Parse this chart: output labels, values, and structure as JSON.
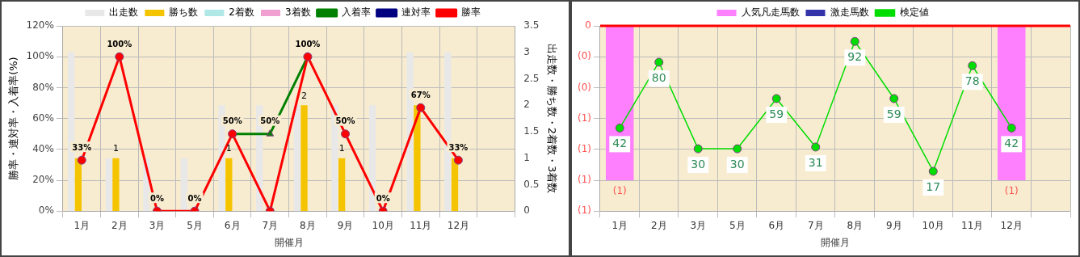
{
  "chart_data": [
    {
      "type": "bar",
      "categories": [
        "1月",
        "2月",
        "3月",
        "5月",
        "6月",
        "7月",
        "8月",
        "9月",
        "10月",
        "11月",
        "12月",
        null
      ],
      "xlabel": "開催月",
      "ylabel": "勝率・連対率・入着率(%)",
      "y2label": "出走数・勝ち数・2着数・3着数",
      "series": [
        {
          "name": "出走数",
          "color": "#e8e8e8",
          "axis": "y2",
          "values": [
            3,
            1,
            1,
            1,
            2,
            2,
            2,
            2,
            2,
            3,
            3,
            null
          ]
        },
        {
          "name": "勝ち数",
          "color": "#f5c400",
          "axis": "y2",
          "values": [
            1,
            1,
            0,
            0,
            1,
            0,
            2,
            1,
            0,
            2,
            1,
            null
          ],
          "value_labels": [
            null,
            "1",
            null,
            null,
            "1",
            null,
            "2",
            "1",
            null,
            null,
            null,
            null
          ]
        },
        {
          "name": "2着数",
          "color": "#b0e8e8",
          "axis": "y2",
          "values": [
            0,
            0,
            0,
            0,
            0,
            0,
            0,
            0,
            0,
            0,
            0,
            null
          ]
        },
        {
          "name": "3着数",
          "color": "#f0a0d0",
          "axis": "y2",
          "values": [
            0,
            0,
            0,
            0,
            0,
            0,
            0,
            0,
            0,
            0,
            0,
            null
          ]
        },
        {
          "name": "入着率",
          "type": "line",
          "color": "#008000",
          "marker": "triangle",
          "values": [
            null,
            null,
            null,
            null,
            50,
            50,
            100,
            null,
            null,
            null,
            null,
            null
          ],
          "value_labels": [
            null,
            null,
            null,
            null,
            "50%",
            "50%",
            "100%",
            null,
            null,
            null,
            null,
            null
          ]
        },
        {
          "name": "連対率",
          "type": "line",
          "color": "#000080",
          "marker": "diamond",
          "values": [
            null,
            null,
            null,
            null,
            null,
            null,
            null,
            null,
            null,
            null,
            null,
            null
          ]
        },
        {
          "name": "勝率",
          "type": "line",
          "color": "#ff0000",
          "marker": "circle",
          "values": [
            33,
            100,
            0,
            0,
            50,
            0,
            100,
            50,
            0,
            67,
            33,
            null
          ],
          "value_labels": [
            "33%",
            "100%",
            "0%",
            "0%",
            null,
            null,
            null,
            "50%",
            "0%",
            "67%",
            "33%",
            null
          ]
        }
      ],
      "ylim": [
        0,
        120
      ],
      "yticks": [
        {
          "value": 0,
          "label": "0%"
        },
        {
          "value": 20,
          "label": "20%"
        },
        {
          "value": 40,
          "label": "40%"
        },
        {
          "value": 60,
          "label": "60%"
        },
        {
          "value": 80,
          "label": "80%"
        },
        {
          "value": 100,
          "label": "100%"
        },
        {
          "value": 120,
          "label": "120%"
        }
      ],
      "y2lim": [
        0,
        3.5
      ],
      "y2ticks": [
        0,
        0.5,
        1,
        1.5,
        2,
        2.5,
        3,
        3.5
      ],
      "grid": true,
      "legend": "top"
    },
    {
      "type": "bar",
      "categories": [
        "1月",
        "2月",
        "3月",
        "5月",
        "6月",
        "7月",
        "8月",
        "9月",
        "10月",
        "11月",
        "12月",
        null
      ],
      "xlabel": "開催月",
      "series": [
        {
          "name": "人気凡走馬数",
          "color": "#ff80ff",
          "values": [
            1,
            null,
            null,
            null,
            null,
            null,
            null,
            null,
            null,
            null,
            1,
            null
          ],
          "value_labels": [
            "(1)",
            null,
            null,
            null,
            null,
            null,
            null,
            null,
            null,
            null,
            "(1)",
            null
          ]
        },
        {
          "name": "激走馬数",
          "color": "#3333aa",
          "values": [
            null,
            null,
            null,
            null,
            null,
            null,
            null,
            null,
            null,
            null,
            null,
            null
          ]
        },
        {
          "name": "検定値",
          "type": "line",
          "color": "#00dd00",
          "marker": "circle",
          "axis": "y2",
          "values": [
            42,
            80,
            30,
            30,
            59,
            31,
            92,
            59,
            17,
            78,
            42,
            null
          ],
          "value_labels": [
            "42",
            "80",
            "30",
            "30",
            "59",
            "31",
            "92",
            "59",
            "17",
            "78",
            "42",
            null
          ]
        }
      ],
      "ylim": [
        1.2,
        0
      ],
      "yticks": [
        {
          "value": 0,
          "label": "0"
        },
        {
          "value": 0.2,
          "label": "(0)"
        },
        {
          "value": 0.4,
          "label": "(0)"
        },
        {
          "value": 0.6,
          "label": "(1)"
        },
        {
          "value": 0.8,
          "label": "(1)"
        },
        {
          "value": 1,
          "label": "(1)"
        },
        {
          "value": 1.2,
          "label": "(1)"
        }
      ],
      "y2lim": [
        -6,
        101
      ],
      "tick_labels": "xy",
      "grid": true,
      "legend": "top",
      "ref_lines": [
        {
          "axis": "y",
          "value": 0,
          "color": "#ff0000"
        }
      ]
    }
  ]
}
